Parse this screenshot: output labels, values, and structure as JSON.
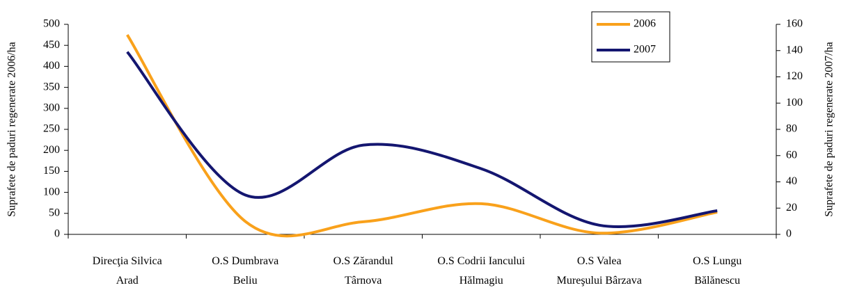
{
  "chart_data": {
    "type": "line",
    "categories": [
      "Direcţia Silvica\nArad",
      "O.S Dumbrava\nBeliu",
      "O.S Zărandul\nTârnova",
      "O.S Codrii Iancului\nHălmagiu",
      "O.S Valea\nMureşului Bârzava",
      "O.S Lungu\nBălănescu"
    ],
    "series": [
      {
        "name": "2006",
        "color": "#f9a11b",
        "values": [
          475,
          31,
          30,
          73,
          3,
          53
        ]
      },
      {
        "name": "2007",
        "color": "#141670",
        "axis": "y2",
        "values": [
          139,
          30,
          68,
          50,
          7,
          18
        ]
      }
    ],
    "y_label": "Suprafete de paduri regenerate 2006/ha",
    "y2_label": "Suprafete de paduri regenerate 2007/ha",
    "ylim": [
      0,
      500
    ],
    "yticks": [
      0,
      50,
      100,
      150,
      200,
      250,
      300,
      350,
      400,
      450,
      500
    ],
    "y2lim": [
      0,
      160
    ],
    "y2ticks": [
      0,
      20,
      40,
      60,
      80,
      100,
      120,
      140,
      160
    ],
    "legend": "top-right",
    "smooth": true
  }
}
